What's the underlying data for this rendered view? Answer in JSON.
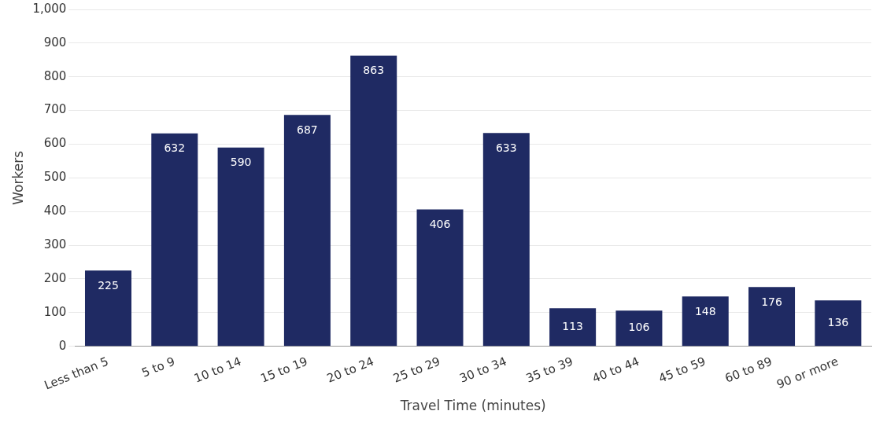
{
  "chart_data": {
    "type": "bar",
    "xlabel": "Travel Time (minutes)",
    "ylabel": "Workers",
    "categories": [
      "Less than 5",
      "5 to 9",
      "10 to 14",
      "15 to 19",
      "20 to 24",
      "25 to 29",
      "30 to 34",
      "35 to 39",
      "40 to 44",
      "45 to 59",
      "60 to 89",
      "90 or more"
    ],
    "values": [
      225,
      632,
      590,
      687,
      863,
      406,
      633,
      113,
      106,
      148,
      176,
      136
    ],
    "color": "#1f2a63",
    "ylim": [
      0,
      1000
    ],
    "yticks": [
      0,
      100,
      200,
      300,
      400,
      500,
      600,
      700,
      800,
      900,
      {
        "value": 1000,
        "label": "1,000"
      }
    ],
    "grid": "y",
    "data_labels": true,
    "legend": false
  }
}
